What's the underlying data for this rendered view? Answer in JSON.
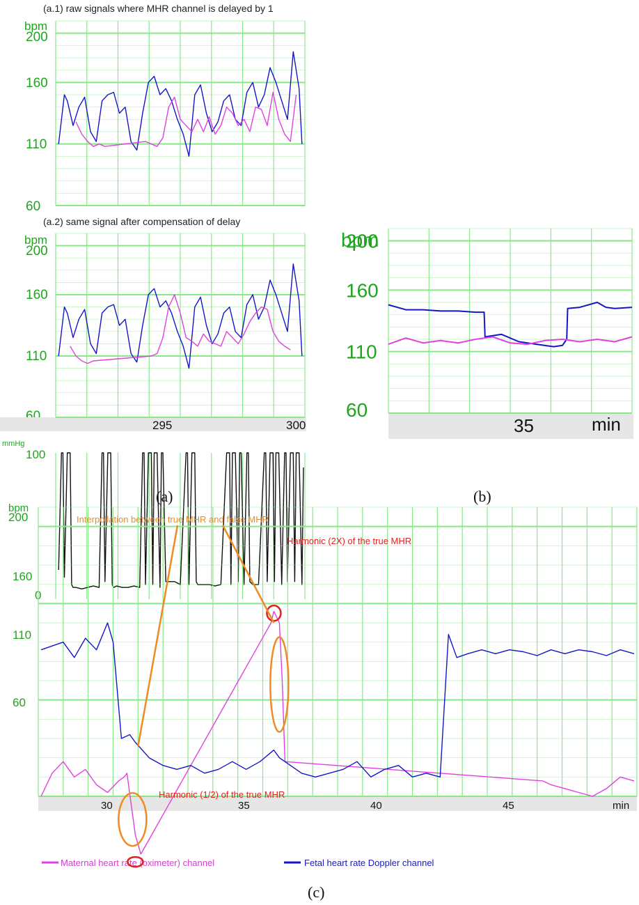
{
  "colors": {
    "grid": "#88e888",
    "ytick": "#1ea51e",
    "maternal": "#e040e0",
    "fetal": "#1515c8",
    "uterine": "#111111",
    "axis_band": "#e6e6e6",
    "annotation_orange": "#f08a24",
    "annotation_red": "#e02020"
  },
  "captions": {
    "a": "(a)",
    "b": "(b)",
    "c": "(c)"
  },
  "chart_data": [
    {
      "id": "a1",
      "type": "line",
      "title": "(a.1) raw signals where  MHR channel is delayed by 1",
      "ylabel": "bpm",
      "ylim": [
        60,
        210
      ],
      "yticks": [
        "200",
        "160",
        "110",
        "60"
      ],
      "xlim": [
        291.5,
        300.1
      ],
      "series": [
        {
          "color_key": "fetal",
          "x": [
            291.6,
            291.8,
            291.9,
            292.1,
            292.3,
            292.5,
            292.7,
            292.9,
            293.1,
            293.3,
            293.5,
            293.7,
            293.9,
            294.1,
            294.3,
            294.5,
            294.7,
            294.9,
            295.1,
            295.3,
            295.5,
            295.7,
            295.9,
            296.1,
            296.3,
            296.5,
            296.7,
            296.9,
            297.1,
            297.3,
            297.5,
            297.7,
            297.9,
            298.1,
            298.3,
            298.5,
            298.7,
            298.9,
            299.1,
            299.3,
            299.5,
            299.7,
            299.9,
            300.0
          ],
          "y": [
            110,
            150,
            145,
            125,
            140,
            148,
            120,
            112,
            145,
            150,
            152,
            135,
            140,
            112,
            105,
            135,
            160,
            165,
            150,
            155,
            145,
            130,
            118,
            100,
            150,
            158,
            135,
            120,
            128,
            145,
            150,
            130,
            125,
            152,
            160,
            140,
            150,
            172,
            160,
            145,
            130,
            185,
            155,
            110
          ]
        },
        {
          "color_key": "maternal",
          "x": [
            292.2,
            292.4,
            292.6,
            292.8,
            293.0,
            293.2,
            294.6,
            294.8,
            295.0,
            295.2,
            295.4,
            295.6,
            295.8,
            296.0,
            296.2,
            296.4,
            296.6,
            296.8,
            297.0,
            297.2,
            297.4,
            297.6,
            297.8,
            298.0,
            298.2,
            298.4,
            298.6,
            298.8,
            299.0,
            299.2,
            299.4,
            299.6,
            299.8
          ],
          "y": [
            128,
            118,
            112,
            108,
            110,
            108,
            112,
            110,
            108,
            115,
            140,
            148,
            130,
            125,
            120,
            130,
            120,
            132,
            118,
            125,
            140,
            135,
            125,
            130,
            120,
            140,
            138,
            125,
            152,
            130,
            118,
            112,
            150
          ]
        }
      ]
    },
    {
      "id": "a2",
      "type": "line",
      "title": "(a.2) same signal after compensation of delay",
      "ylabel": "bpm",
      "ylim": [
        60,
        210
      ],
      "yticks": [
        "200",
        "160",
        "110",
        "60"
      ],
      "xlabel_ticks": [
        "295",
        "300"
      ],
      "xlim": [
        291.5,
        300.1
      ],
      "series": [
        {
          "color_key": "fetal",
          "x": [
            291.6,
            291.8,
            291.9,
            292.1,
            292.3,
            292.5,
            292.7,
            292.9,
            293.1,
            293.3,
            293.5,
            293.7,
            293.9,
            294.1,
            294.3,
            294.5,
            294.7,
            294.9,
            295.1,
            295.3,
            295.5,
            295.7,
            295.9,
            296.1,
            296.3,
            296.5,
            296.7,
            296.9,
            297.1,
            297.3,
            297.5,
            297.7,
            297.9,
            298.1,
            298.3,
            298.5,
            298.7,
            298.9,
            299.1,
            299.3,
            299.5,
            299.7,
            299.9,
            300.0
          ],
          "y": [
            110,
            150,
            145,
            125,
            140,
            148,
            120,
            112,
            145,
            150,
            152,
            135,
            140,
            112,
            105,
            135,
            160,
            165,
            150,
            155,
            145,
            130,
            118,
            100,
            150,
            158,
            135,
            120,
            128,
            145,
            150,
            130,
            125,
            152,
            160,
            140,
            150,
            172,
            160,
            145,
            130,
            185,
            155,
            110
          ]
        },
        {
          "color_key": "maternal",
          "x": [
            292.0,
            292.2,
            292.4,
            292.6,
            292.8,
            294.8,
            295.0,
            295.2,
            295.4,
            295.6,
            295.8,
            296.0,
            296.2,
            296.4,
            296.6,
            296.8,
            297.0,
            297.2,
            297.4,
            297.6,
            297.8,
            298.0,
            298.2,
            298.4,
            298.6,
            298.8,
            299.0,
            299.2,
            299.4,
            299.6
          ],
          "y": [
            118,
            110,
            106,
            104,
            106,
            110,
            112,
            125,
            150,
            160,
            145,
            125,
            122,
            118,
            128,
            122,
            120,
            118,
            130,
            125,
            120,
            128,
            138,
            145,
            150,
            148,
            130,
            122,
            118,
            115
          ]
        }
      ]
    },
    {
      "id": "a3",
      "type": "line",
      "ylabel": "mmHg",
      "ylim": [
        0,
        100
      ],
      "yticks": [
        "100",
        "0"
      ],
      "xlim": [
        291.5,
        300.1
      ],
      "series": [
        {
          "color_key": "uterine",
          "x": [
            291.6,
            291.7,
            291.75,
            291.8,
            291.9,
            292.0,
            292.05,
            292.1,
            292.2,
            292.4,
            292.6,
            292.8,
            293.0,
            293.1,
            293.15,
            293.2,
            293.3,
            293.4,
            293.45,
            293.5,
            293.6,
            293.8,
            294.0,
            294.2,
            294.4,
            294.5,
            294.55,
            294.6,
            294.7,
            294.8,
            294.85,
            294.9,
            295.0,
            295.1,
            295.15,
            295.2,
            295.3,
            295.6,
            295.8,
            296.0,
            296.05,
            296.1,
            296.2,
            296.3,
            296.35,
            296.4,
            296.5,
            296.8,
            297.0,
            297.2,
            297.4,
            297.5,
            297.55,
            297.6,
            297.7,
            297.8,
            297.85,
            297.9,
            298.0,
            298.1,
            298.15,
            298.2,
            298.3,
            298.5,
            298.7,
            298.75,
            298.8,
            298.9,
            299.0,
            299.05,
            299.1,
            299.2,
            299.3,
            299.4,
            299.45,
            299.5,
            299.6,
            299.7,
            299.75,
            299.8,
            299.9,
            300.0,
            300.05
          ],
          "y": [
            20,
            100,
            100,
            15,
            100,
            100,
            10,
            8,
            8,
            7,
            8,
            9,
            8,
            100,
            100,
            12,
            100,
            100,
            10,
            8,
            9,
            8,
            8,
            9,
            8,
            100,
            100,
            10,
            100,
            100,
            10,
            100,
            100,
            8,
            100,
            100,
            12,
            12,
            10,
            100,
            100,
            10,
            100,
            100,
            12,
            10,
            10,
            10,
            9,
            10,
            100,
            100,
            10,
            100,
            100,
            12,
            100,
            100,
            10,
            100,
            100,
            12,
            10,
            10,
            100,
            100,
            12,
            100,
            100,
            12,
            100,
            100,
            10,
            100,
            100,
            12,
            100,
            100,
            12,
            100,
            100,
            10,
            90
          ]
        }
      ]
    },
    {
      "id": "b",
      "type": "line",
      "ylabel": "bpm",
      "ylim": [
        60,
        210
      ],
      "yticks": [
        "200",
        "160",
        "110",
        "60"
      ],
      "xlabel_ticks": [
        "35"
      ],
      "xunit": "min",
      "xlim": [
        33.0,
        35.8
      ],
      "series": [
        {
          "color_key": "fetal",
          "x": [
            33.0,
            33.2,
            33.4,
            33.6,
            33.8,
            34.0,
            34.1,
            34.11,
            34.3,
            34.5,
            34.7,
            34.9,
            35.0,
            35.05,
            35.06,
            35.2,
            35.4,
            35.5,
            35.6,
            35.8
          ],
          "y": [
            148,
            144,
            144,
            143,
            143,
            142,
            142,
            122,
            124,
            118,
            116,
            114,
            115,
            120,
            145,
            146,
            150,
            146,
            145,
            146
          ]
        },
        {
          "color_key": "maternal",
          "x": [
            33.0,
            33.2,
            33.4,
            33.6,
            33.8,
            34.0,
            34.2,
            34.4,
            34.6,
            34.8,
            35.0,
            35.2,
            35.4,
            35.6,
            35.8
          ],
          "y": [
            116,
            121,
            117,
            119,
            117,
            120,
            122,
            117,
            116,
            119,
            120,
            118,
            120,
            118,
            122
          ]
        }
      ]
    },
    {
      "id": "c",
      "type": "line",
      "ylabel": "bpm",
      "ylim": [
        60,
        210
      ],
      "yticks": [
        "200",
        "160",
        "110",
        "60"
      ],
      "xlabel_ticks": [
        "30",
        "35",
        "40",
        "45"
      ],
      "xunit": "min",
      "xlim": [
        27.5,
        49.1
      ],
      "series": [
        {
          "name": "Maternal heart rate (oximeter) channel",
          "color_key": "maternal",
          "x": [
            27.6,
            28.0,
            28.4,
            28.8,
            29.2,
            29.6,
            30.0,
            30.4,
            30.6,
            30.7,
            31.0,
            31.2,
            35.9,
            36.0,
            36.2,
            36.3,
            36.4,
            45.7,
            46.0,
            46.5,
            47.0,
            47.5,
            48.0,
            48.5,
            49.0
          ],
          "y": [
            60,
            72,
            78,
            70,
            74,
            66,
            62,
            68,
            70,
            72,
            40,
            30,
            150,
            156,
            150,
            120,
            78,
            68,
            66,
            64,
            62,
            60,
            64,
            70,
            68
          ]
        },
        {
          "name": "Fetal heart rate Doppler channel",
          "color_key": "fetal",
          "x": [
            27.6,
            28.0,
            28.4,
            28.8,
            29.2,
            29.6,
            30.0,
            30.2,
            30.5,
            30.8,
            31.0,
            31.5,
            32.0,
            32.5,
            33.0,
            33.5,
            34.0,
            34.5,
            35.0,
            35.5,
            36.0,
            36.2,
            36.6,
            37.0,
            37.5,
            38.0,
            38.5,
            39.0,
            39.5,
            40.0,
            40.5,
            41.0,
            41.5,
            42.0,
            42.3,
            42.6,
            43.0,
            43.5,
            44.0,
            44.5,
            45.0,
            45.5,
            46.0,
            46.5,
            47.0,
            47.5,
            48.0,
            48.5,
            49.0
          ],
          "y": [
            136,
            138,
            140,
            132,
            142,
            136,
            150,
            140,
            90,
            92,
            88,
            80,
            76,
            74,
            76,
            72,
            74,
            78,
            74,
            78,
            84,
            80,
            76,
            72,
            70,
            72,
            74,
            78,
            70,
            74,
            76,
            70,
            72,
            70,
            144,
            132,
            134,
            136,
            134,
            136,
            135,
            133,
            136,
            134,
            136,
            135,
            133,
            136,
            134
          ]
        }
      ],
      "annotations": [
        "Interpollation between true MHR and false MHR",
        "Harmonic (2X) of the true MHR",
        "Harmonic (1/2) of the true MHR"
      ]
    }
  ]
}
